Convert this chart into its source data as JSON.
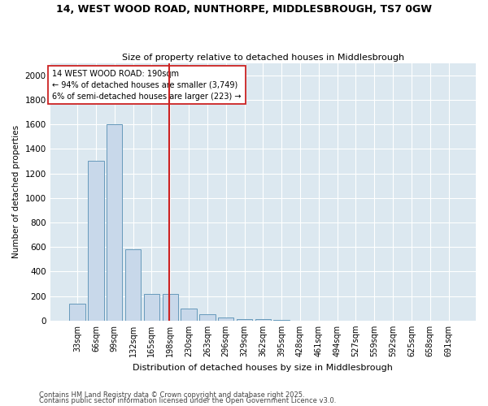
{
  "title": "14, WEST WOOD ROAD, NUNTHORPE, MIDDLESBROUGH, TS7 0GW",
  "subtitle": "Size of property relative to detached houses in Middlesbrough",
  "xlabel": "Distribution of detached houses by size in Middlesbrough",
  "ylabel": "Number of detached properties",
  "categories": [
    "33sqm",
    "66sqm",
    "99sqm",
    "132sqm",
    "165sqm",
    "198sqm",
    "230sqm",
    "263sqm",
    "296sqm",
    "329sqm",
    "362sqm",
    "395sqm",
    "428sqm",
    "461sqm",
    "494sqm",
    "527sqm",
    "559sqm",
    "592sqm",
    "625sqm",
    "658sqm",
    "691sqm"
  ],
  "bar_heights": [
    140,
    1300,
    1600,
    580,
    220,
    215,
    100,
    50,
    25,
    15,
    10,
    5,
    2,
    1,
    1,
    1,
    1,
    1,
    0,
    0,
    0
  ],
  "bar_color": "#c8d8ea",
  "bar_edge_color": "#6699bb",
  "vline_color": "#cc2222",
  "annotation_text": "14 WEST WOOD ROAD: 190sqm\n← 94% of detached houses are smaller (3,749)\n6% of semi-detached houses are larger (223) →",
  "annotation_box_color": "#ffffff",
  "annotation_box_edge": "#cc2222",
  "ylim": [
    0,
    2100
  ],
  "yticks": [
    0,
    200,
    400,
    600,
    800,
    1000,
    1200,
    1400,
    1600,
    1800,
    2000
  ],
  "plot_bg_color": "#dce8f0",
  "fig_bg_color": "#ffffff",
  "grid_color": "#ffffff",
  "footer1": "Contains HM Land Registry data © Crown copyright and database right 2025.",
  "footer2": "Contains public sector information licensed under the Open Government Licence v3.0."
}
